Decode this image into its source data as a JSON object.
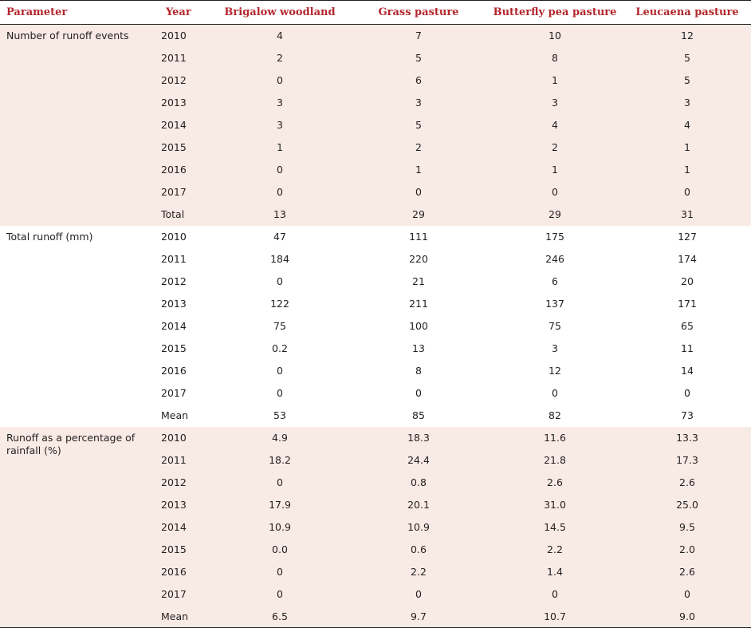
{
  "headers": [
    "Parameter",
    "Year",
    "Brigalow woodland",
    "Grass pasture",
    "Butterfly pea pasture",
    "Leucaena pasture"
  ],
  "sections": [
    {
      "parameter": "Number of runoff events",
      "rows": [
        [
          "2010",
          "4",
          "7",
          "10",
          "12"
        ],
        [
          "2011",
          "2",
          "5",
          "8",
          "5"
        ],
        [
          "2012",
          "0",
          "6",
          "1",
          "5"
        ],
        [
          "2013",
          "3",
          "3",
          "3",
          "3"
        ],
        [
          "2014",
          "3",
          "5",
          "4",
          "4"
        ],
        [
          "2015",
          "1",
          "2",
          "2",
          "1"
        ],
        [
          "2016",
          "0",
          "1",
          "1",
          "1"
        ],
        [
          "2017",
          "0",
          "0",
          "0",
          "0"
        ],
        [
          "Total",
          "13",
          "29",
          "29",
          "31"
        ]
      ]
    },
    {
      "parameter": "Total runoff (mm)",
      "rows": [
        [
          "2010",
          "47",
          "111",
          "175",
          "127"
        ],
        [
          "2011",
          "184",
          "220",
          "246",
          "174"
        ],
        [
          "2012",
          "0",
          "21",
          "6",
          "20"
        ],
        [
          "2013",
          "122",
          "211",
          "137",
          "171"
        ],
        [
          "2014",
          "75",
          "100",
          "75",
          "65"
        ],
        [
          "2015",
          "0.2",
          "13",
          "3",
          "11"
        ],
        [
          "2016",
          "0",
          "8",
          "12",
          "14"
        ],
        [
          "2017",
          "0",
          "0",
          "0",
          "0"
        ],
        [
          "Mean",
          "53",
          "85",
          "82",
          "73"
        ]
      ]
    },
    {
      "parameter": "Runoff as a percentage of rainfall (%)",
      "rows": [
        [
          "2010",
          "4.9",
          "18.3",
          "11.6",
          "13.3"
        ],
        [
          "2011",
          "18.2",
          "24.4",
          "21.8",
          "17.3"
        ],
        [
          "2012",
          "0",
          "0.8",
          "2.6",
          "2.6"
        ],
        [
          "2013",
          "17.9",
          "20.1",
          "31.0",
          "25.0"
        ],
        [
          "2014",
          "10.9",
          "10.9",
          "14.5",
          "9.5"
        ],
        [
          "2015",
          "0.0",
          "0.6",
          "2.2",
          "2.0"
        ],
        [
          "2016",
          "0",
          "2.2",
          "1.4",
          "2.6"
        ],
        [
          "2017",
          "0",
          "0",
          "0",
          "0"
        ],
        [
          "Mean",
          "6.5",
          "9.7",
          "10.7",
          "9.0"
        ]
      ]
    }
  ],
  "colors": {
    "header_text": "#b3272d",
    "shade": "#f8ebe6",
    "rule": "#231f20"
  }
}
